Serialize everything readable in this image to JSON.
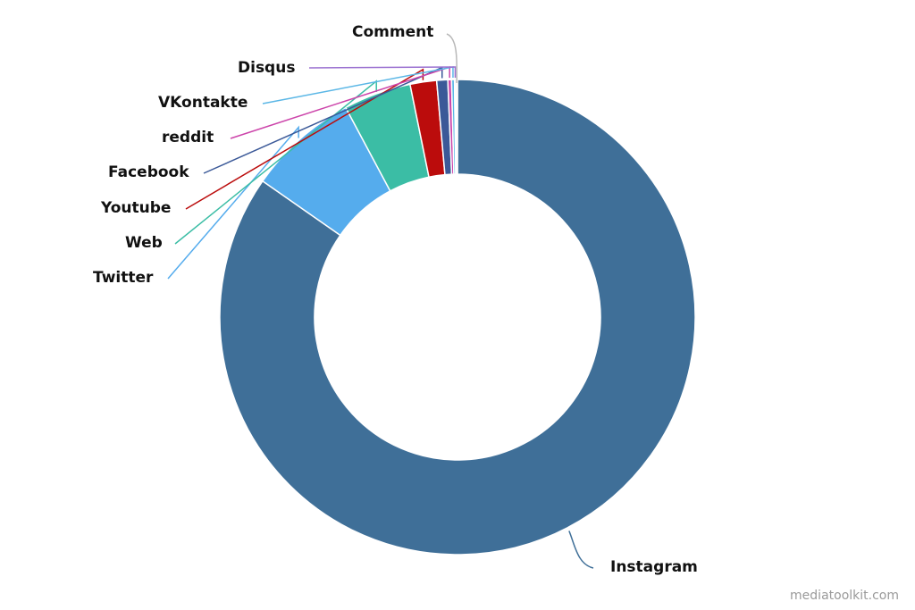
{
  "chart_data": {
    "type": "pie",
    "donut": true,
    "start_at": "12 o'clock, clockwise",
    "slices": [
      {
        "label": "Instagram",
        "value": 84.7,
        "color": "#3f6f98"
      },
      {
        "label": "Twitter",
        "value": 7.5,
        "color": "#55aced"
      },
      {
        "label": "Web",
        "value": 4.6,
        "color": "#3bbda5"
      },
      {
        "label": "Youtube",
        "value": 1.8,
        "color": "#bb0c0c"
      },
      {
        "label": "Facebook",
        "value": 0.75,
        "color": "#3b5998"
      },
      {
        "label": "reddit",
        "value": 0.25,
        "color": "#cc44aa"
      },
      {
        "label": "VKontakte",
        "value": 0.2,
        "color": "#5bb7e6"
      },
      {
        "label": "Disqus",
        "value": 0.1,
        "color": "#9a70d0"
      },
      {
        "label": "Comment",
        "value": 0.1,
        "color": "#b8b8b8"
      }
    ]
  },
  "watermark": "mediatoolkit.com"
}
